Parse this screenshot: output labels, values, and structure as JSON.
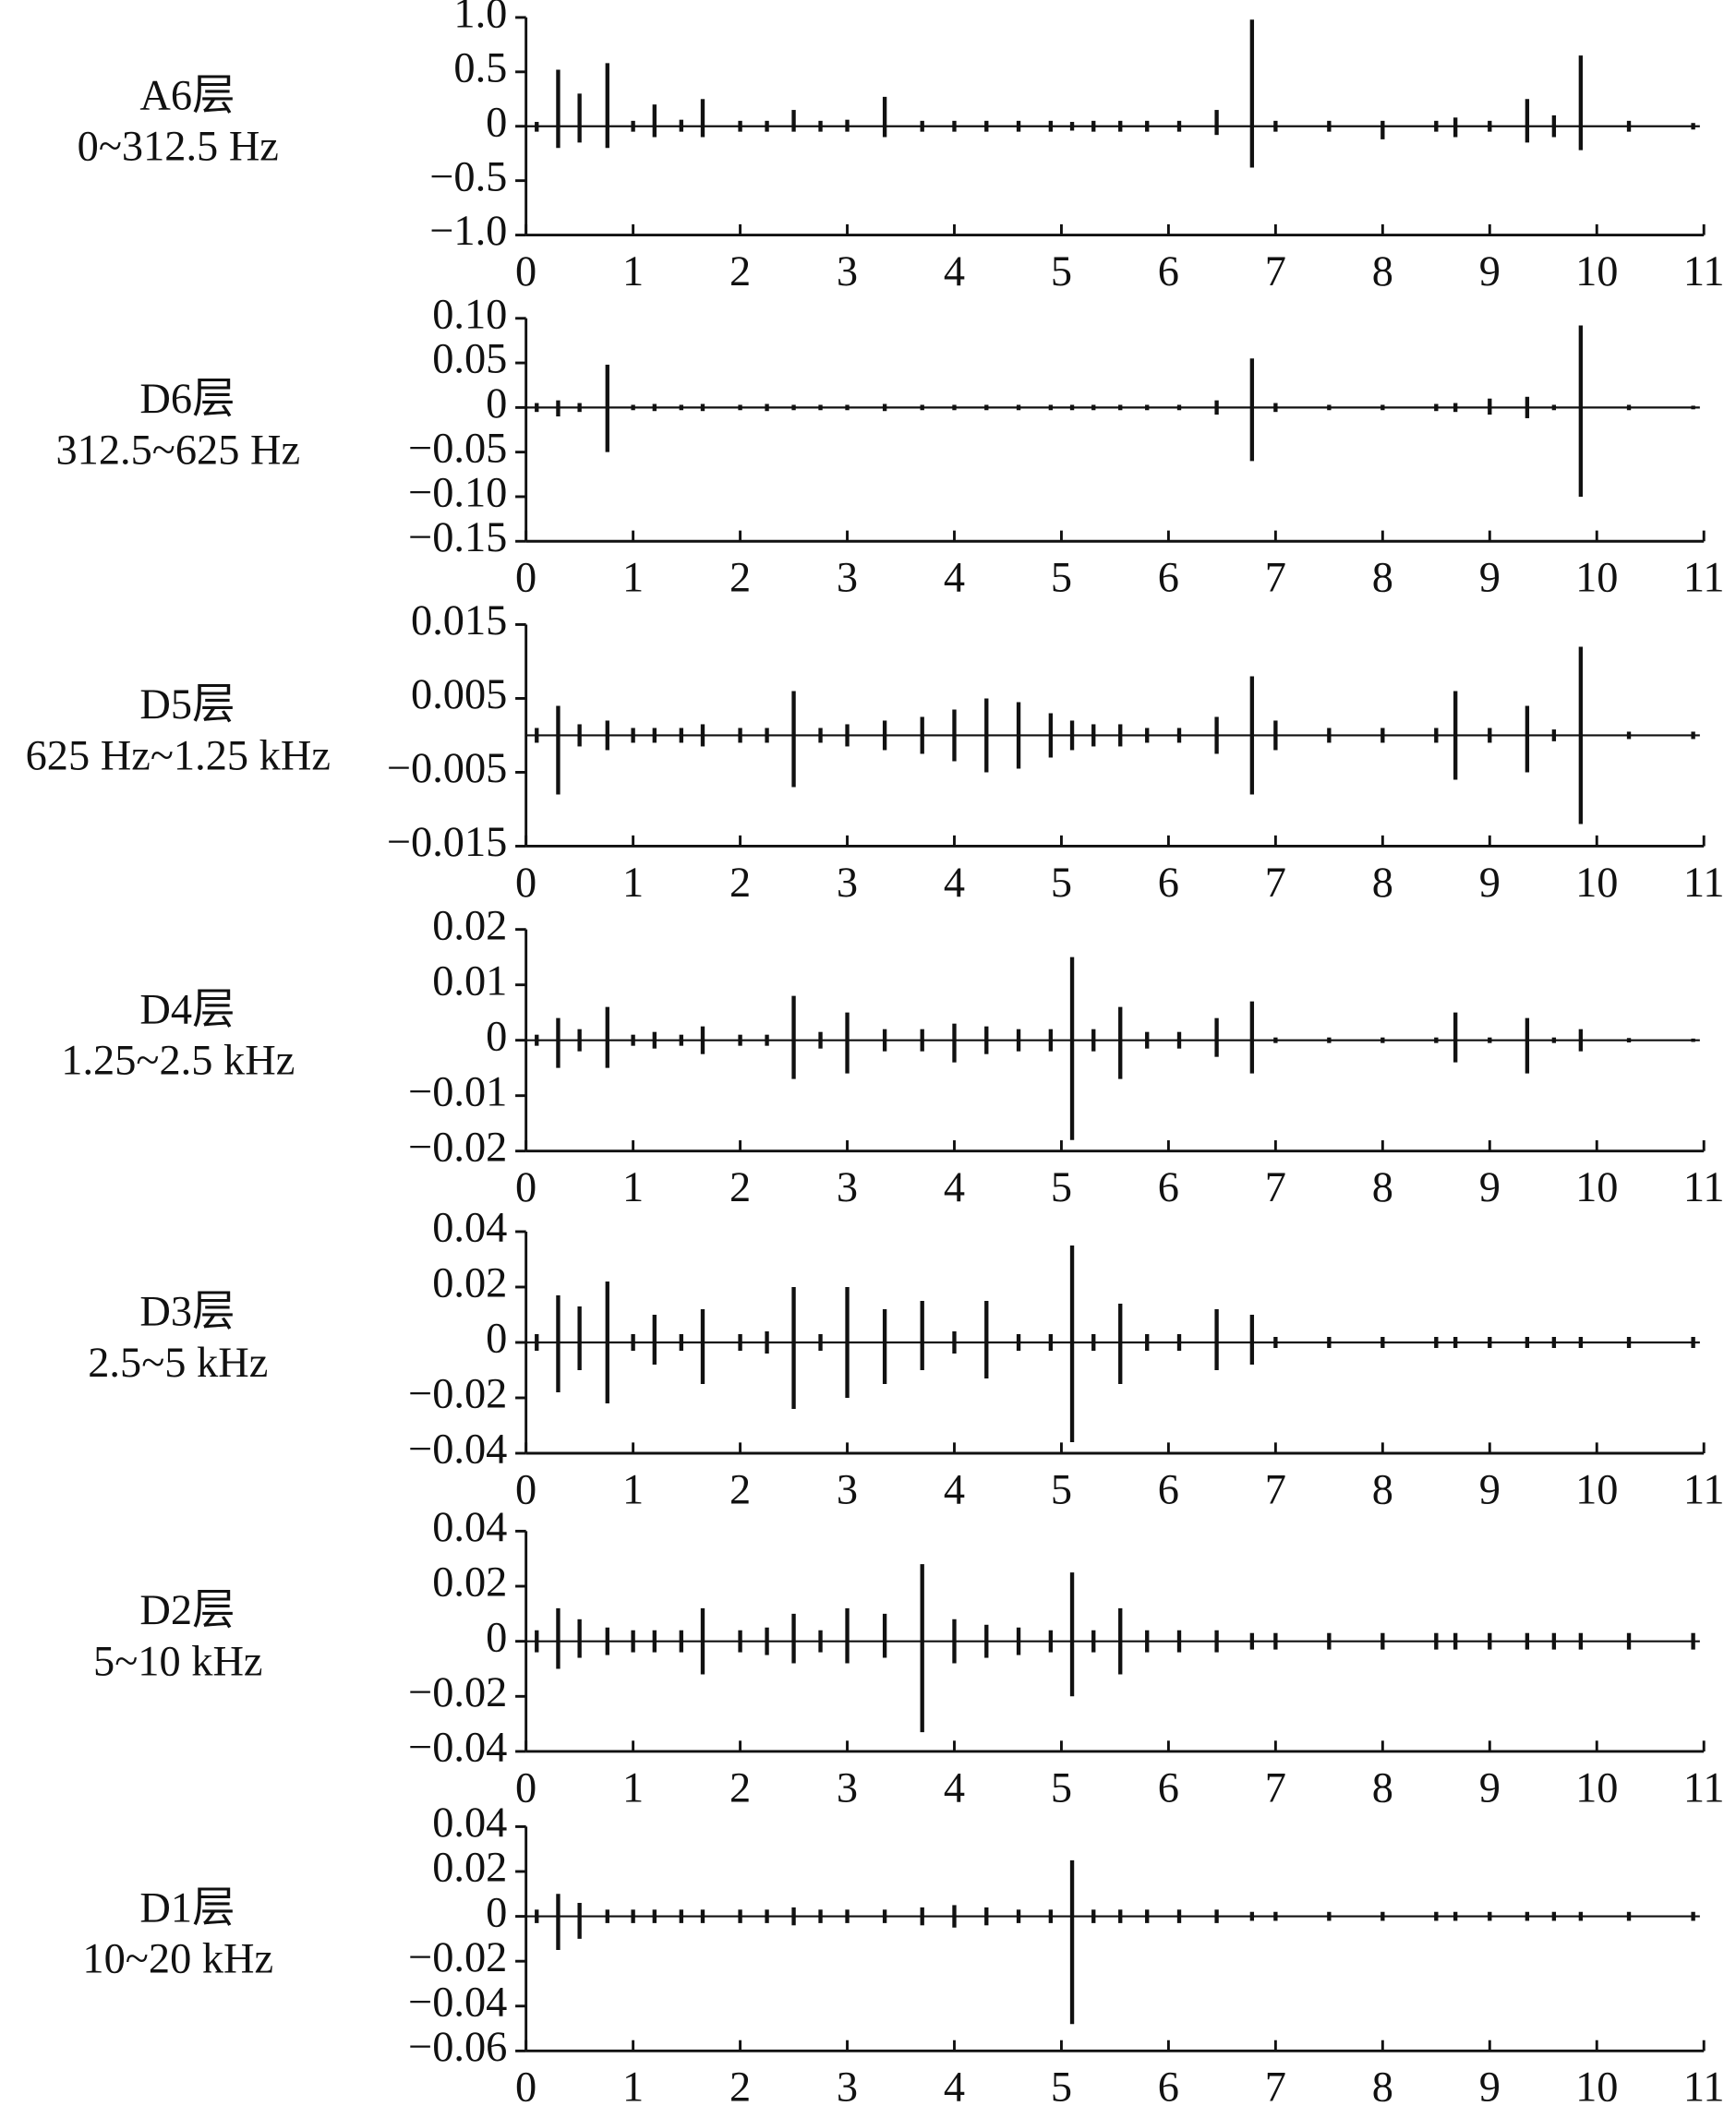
{
  "chart_data": [
    {
      "type": "waveform",
      "label": "A6层",
      "band": "0~312.5 Hz",
      "x": [
        0.1,
        0.3,
        0.5,
        0.76,
        1.0,
        1.2,
        1.45,
        1.65,
        2.0,
        2.25,
        2.5,
        2.75,
        3.0,
        3.35,
        3.7,
        4.0,
        4.3,
        4.6,
        4.9,
        5.1,
        5.3,
        5.55,
        5.8,
        6.1,
        6.45,
        6.78,
        7.0,
        7.5,
        8.0,
        8.5,
        8.68,
        9.0,
        9.35,
        9.6,
        9.85,
        10.3,
        10.9
      ],
      "max": [
        0.04,
        0.52,
        0.3,
        0.58,
        0.05,
        0.2,
        0.06,
        0.25,
        0.05,
        0.05,
        0.15,
        0.05,
        0.06,
        0.27,
        0.05,
        0.05,
        0.05,
        0.05,
        0.05,
        0.04,
        0.05,
        0.05,
        0.05,
        0.05,
        0.15,
        0.98,
        0.05,
        0.05,
        0.05,
        0.05,
        0.08,
        0.05,
        0.25,
        0.1,
        0.65,
        0.05,
        0.03
      ],
      "min": [
        -0.05,
        -0.2,
        -0.15,
        -0.2,
        -0.05,
        -0.1,
        -0.05,
        -0.1,
        -0.05,
        -0.05,
        -0.05,
        -0.05,
        -0.05,
        -0.1,
        -0.05,
        -0.05,
        -0.05,
        -0.05,
        -0.05,
        -0.04,
        -0.05,
        -0.05,
        -0.05,
        -0.05,
        -0.08,
        -0.38,
        -0.05,
        -0.05,
        -0.12,
        -0.05,
        -0.1,
        -0.05,
        -0.15,
        -0.1,
        -0.22,
        -0.05,
        -0.03
      ],
      "xlim": [
        0,
        11
      ],
      "xticks": [
        0,
        1,
        2,
        3,
        4,
        5,
        6,
        7,
        8,
        9,
        10,
        11
      ],
      "ylim": [
        -1,
        1
      ],
      "yticks": [
        {
          "value": 1,
          "label": "1.0"
        },
        0.5,
        0,
        {
          "value": -0.5,
          "label": "−0.5"
        },
        {
          "value": -1,
          "label": "−1.0"
        }
      ]
    },
    {
      "type": "waveform",
      "label": "D6层",
      "band": "312.5~625 Hz",
      "x": [
        0.1,
        0.3,
        0.5,
        0.76,
        1.0,
        1.2,
        1.45,
        1.65,
        2.0,
        2.25,
        2.5,
        2.75,
        3.0,
        3.35,
        3.7,
        4.0,
        4.3,
        4.6,
        4.9,
        5.1,
        5.3,
        5.55,
        5.8,
        6.1,
        6.45,
        6.78,
        7.0,
        7.5,
        8.0,
        8.5,
        8.68,
        9.0,
        9.35,
        9.6,
        9.85,
        10.3,
        10.9
      ],
      "max": [
        0.005,
        0.008,
        0.005,
        0.048,
        0.003,
        0.004,
        0.003,
        0.004,
        0.003,
        0.004,
        0.003,
        0.003,
        0.003,
        0.004,
        0.003,
        0.003,
        0.003,
        0.003,
        0.003,
        0.003,
        0.003,
        0.003,
        0.003,
        0.003,
        0.008,
        0.055,
        0.005,
        0.003,
        0.003,
        0.004,
        0.005,
        0.01,
        0.012,
        0.003,
        0.092,
        0.003,
        0.002
      ],
      "min": [
        -0.005,
        -0.01,
        -0.005,
        -0.05,
        -0.003,
        -0.004,
        -0.003,
        -0.004,
        -0.003,
        -0.004,
        -0.003,
        -0.003,
        -0.003,
        -0.004,
        -0.003,
        -0.003,
        -0.003,
        -0.003,
        -0.003,
        -0.003,
        -0.003,
        -0.003,
        -0.003,
        -0.003,
        -0.008,
        -0.06,
        -0.005,
        -0.003,
        -0.003,
        -0.004,
        -0.005,
        -0.008,
        -0.012,
        -0.003,
        -0.1,
        -0.003,
        -0.002
      ],
      "xlim": [
        0,
        11
      ],
      "xticks": [
        0,
        1,
        2,
        3,
        4,
        5,
        6,
        7,
        8,
        9,
        10,
        11
      ],
      "ylim": [
        -0.15,
        0.1
      ],
      "yticks": [
        {
          "value": 0.1,
          "label": "0.10"
        },
        0.05,
        0,
        {
          "value": -0.05,
          "label": "−0.05"
        },
        {
          "value": -0.1,
          "label": "−0.10"
        },
        {
          "value": -0.15,
          "label": "−0.15"
        }
      ]
    },
    {
      "type": "waveform",
      "label": "D5层",
      "band": "625 Hz~1.25 kHz",
      "x": [
        0.1,
        0.3,
        0.5,
        0.76,
        1.0,
        1.2,
        1.45,
        1.65,
        2.0,
        2.25,
        2.5,
        2.75,
        3.0,
        3.35,
        3.7,
        4.0,
        4.3,
        4.6,
        4.9,
        5.1,
        5.3,
        5.55,
        5.8,
        6.1,
        6.45,
        6.78,
        7.0,
        7.5,
        8.0,
        8.5,
        8.68,
        9.0,
        9.35,
        9.6,
        9.85,
        10.3,
        10.9
      ],
      "max": [
        0.001,
        0.004,
        0.0015,
        0.002,
        0.001,
        0.001,
        0.001,
        0.0015,
        0.001,
        0.001,
        0.006,
        0.001,
        0.0015,
        0.002,
        0.0025,
        0.0035,
        0.005,
        0.0045,
        0.003,
        0.002,
        0.0015,
        0.0015,
        0.001,
        0.001,
        0.0025,
        0.008,
        0.002,
        0.001,
        0.001,
        0.001,
        0.006,
        0.001,
        0.004,
        0.0008,
        0.012,
        0.0005,
        0.0005
      ],
      "min": [
        -0.001,
        -0.008,
        -0.0015,
        -0.002,
        -0.001,
        -0.001,
        -0.001,
        -0.0015,
        -0.001,
        -0.001,
        -0.007,
        -0.001,
        -0.0015,
        -0.002,
        -0.0025,
        -0.0035,
        -0.005,
        -0.0045,
        -0.003,
        -0.002,
        -0.0015,
        -0.0015,
        -0.001,
        -0.001,
        -0.0025,
        -0.008,
        -0.002,
        -0.001,
        -0.001,
        -0.001,
        -0.006,
        -0.001,
        -0.005,
        -0.0008,
        -0.012,
        -0.0005,
        -0.0005
      ],
      "xlim": [
        0,
        11
      ],
      "xticks": [
        0,
        1,
        2,
        3,
        4,
        5,
        6,
        7,
        8,
        9,
        10,
        11
      ],
      "ylim": [
        -0.015,
        0.015
      ],
      "yticks": [
        0.015,
        0.005,
        {
          "value": -0.005,
          "label": "−0.005"
        },
        {
          "value": -0.015,
          "label": "−0.015"
        }
      ]
    },
    {
      "type": "waveform",
      "label": "D4层",
      "band": "1.25~2.5 kHz",
      "x": [
        0.1,
        0.3,
        0.5,
        0.76,
        1.0,
        1.2,
        1.45,
        1.65,
        2.0,
        2.25,
        2.5,
        2.75,
        3.0,
        3.35,
        3.7,
        4.0,
        4.3,
        4.6,
        4.9,
        5.1,
        5.3,
        5.55,
        5.8,
        6.1,
        6.45,
        6.78,
        7.0,
        7.5,
        8.0,
        8.5,
        8.68,
        9.0,
        9.35,
        9.6,
        9.85,
        10.3,
        10.9
      ],
      "max": [
        0.001,
        0.004,
        0.002,
        0.006,
        0.001,
        0.0015,
        0.001,
        0.0025,
        0.001,
        0.001,
        0.008,
        0.0015,
        0.005,
        0.002,
        0.002,
        0.003,
        0.0025,
        0.002,
        0.002,
        0.015,
        0.002,
        0.006,
        0.0015,
        0.0015,
        0.004,
        0.007,
        0.0005,
        0.0005,
        0.0005,
        0.0005,
        0.005,
        0.0005,
        0.004,
        0.0005,
        0.002,
        0.0004,
        0.0003
      ],
      "min": [
        -0.001,
        -0.005,
        -0.002,
        -0.005,
        -0.001,
        -0.0015,
        -0.001,
        -0.0025,
        -0.001,
        -0.001,
        -0.007,
        -0.0015,
        -0.006,
        -0.002,
        -0.002,
        -0.004,
        -0.0025,
        -0.002,
        -0.002,
        -0.018,
        -0.002,
        -0.007,
        -0.0015,
        -0.0015,
        -0.003,
        -0.006,
        -0.0005,
        -0.0005,
        -0.0005,
        -0.0005,
        -0.004,
        -0.0005,
        -0.006,
        -0.0005,
        -0.002,
        -0.0004,
        -0.0003
      ],
      "xlim": [
        0,
        11
      ],
      "xticks": [
        0,
        1,
        2,
        3,
        4,
        5,
        6,
        7,
        8,
        9,
        10,
        11
      ],
      "ylim": [
        -0.02,
        0.02
      ],
      "yticks": [
        0.02,
        0.01,
        0,
        {
          "value": -0.01,
          "label": "−0.01"
        },
        {
          "value": -0.02,
          "label": "−0.02"
        }
      ]
    },
    {
      "type": "waveform",
      "label": "D3层",
      "band": "2.5~5 kHz",
      "x": [
        0.1,
        0.3,
        0.5,
        0.76,
        1.0,
        1.2,
        1.45,
        1.65,
        2.0,
        2.25,
        2.5,
        2.75,
        3.0,
        3.35,
        3.7,
        4.0,
        4.3,
        4.6,
        4.9,
        5.1,
        5.3,
        5.55,
        5.8,
        6.1,
        6.45,
        6.78,
        7.0,
        7.5,
        8.0,
        8.5,
        8.68,
        9.0,
        9.35,
        9.6,
        9.85,
        10.3,
        10.9
      ],
      "max": [
        0.003,
        0.017,
        0.013,
        0.022,
        0.003,
        0.01,
        0.003,
        0.012,
        0.003,
        0.004,
        0.02,
        0.003,
        0.02,
        0.012,
        0.015,
        0.004,
        0.015,
        0.003,
        0.003,
        0.035,
        0.003,
        0.014,
        0.003,
        0.003,
        0.012,
        0.01,
        0.002,
        0.002,
        0.002,
        0.002,
        0.002,
        0.002,
        0.002,
        0.002,
        0.002,
        0.002,
        0.002
      ],
      "min": [
        -0.003,
        -0.018,
        -0.01,
        -0.022,
        -0.003,
        -0.008,
        -0.003,
        -0.015,
        -0.003,
        -0.004,
        -0.024,
        -0.003,
        -0.02,
        -0.015,
        -0.01,
        -0.004,
        -0.013,
        -0.003,
        -0.003,
        -0.036,
        -0.003,
        -0.015,
        -0.003,
        -0.003,
        -0.01,
        -0.008,
        -0.002,
        -0.002,
        -0.002,
        -0.002,
        -0.002,
        -0.002,
        -0.002,
        -0.002,
        -0.002,
        -0.002,
        -0.002
      ],
      "xlim": [
        0,
        11
      ],
      "xticks": [
        0,
        1,
        2,
        3,
        4,
        5,
        6,
        7,
        8,
        9,
        10,
        11
      ],
      "ylim": [
        -0.04,
        0.04
      ],
      "yticks": [
        0.04,
        0.02,
        0,
        {
          "value": -0.02,
          "label": "−0.02"
        },
        {
          "value": -0.04,
          "label": "−0.04"
        }
      ]
    },
    {
      "type": "waveform",
      "label": "D2层",
      "band": "5~10 kHz",
      "x": [
        0.1,
        0.3,
        0.5,
        0.76,
        1.0,
        1.2,
        1.45,
        1.65,
        2.0,
        2.25,
        2.5,
        2.75,
        3.0,
        3.35,
        3.7,
        4.0,
        4.3,
        4.6,
        4.9,
        5.1,
        5.3,
        5.55,
        5.8,
        6.1,
        6.45,
        6.78,
        7.0,
        7.5,
        8.0,
        8.5,
        8.68,
        9.0,
        9.35,
        9.6,
        9.85,
        10.3,
        10.9
      ],
      "max": [
        0.004,
        0.012,
        0.008,
        0.005,
        0.004,
        0.004,
        0.004,
        0.012,
        0.004,
        0.005,
        0.01,
        0.004,
        0.012,
        0.01,
        0.028,
        0.008,
        0.006,
        0.005,
        0.004,
        0.025,
        0.004,
        0.012,
        0.004,
        0.004,
        0.004,
        0.003,
        0.003,
        0.003,
        0.003,
        0.003,
        0.003,
        0.003,
        0.003,
        0.003,
        0.003,
        0.003,
        0.003
      ],
      "min": [
        -0.004,
        -0.01,
        -0.006,
        -0.005,
        -0.004,
        -0.004,
        -0.004,
        -0.012,
        -0.004,
        -0.005,
        -0.008,
        -0.004,
        -0.008,
        -0.006,
        -0.033,
        -0.008,
        -0.006,
        -0.005,
        -0.004,
        -0.02,
        -0.004,
        -0.012,
        -0.004,
        -0.004,
        -0.004,
        -0.003,
        -0.003,
        -0.003,
        -0.003,
        -0.003,
        -0.003,
        -0.003,
        -0.003,
        -0.003,
        -0.003,
        -0.003,
        -0.003
      ],
      "xlim": [
        0,
        11
      ],
      "xticks": [
        0,
        1,
        2,
        3,
        4,
        5,
        6,
        7,
        8,
        9,
        10,
        11
      ],
      "ylim": [
        -0.04,
        0.04
      ],
      "yticks": [
        0.04,
        0.02,
        0,
        {
          "value": -0.02,
          "label": "−0.02"
        },
        {
          "value": -0.04,
          "label": "−0.04"
        }
      ]
    },
    {
      "type": "waveform",
      "label": "D1层",
      "band": "10~20 kHz",
      "x": [
        0.1,
        0.3,
        0.5,
        0.76,
        1.0,
        1.2,
        1.45,
        1.65,
        2.0,
        2.25,
        2.5,
        2.75,
        3.0,
        3.35,
        3.7,
        4.0,
        4.3,
        4.6,
        4.9,
        5.1,
        5.3,
        5.55,
        5.8,
        6.1,
        6.45,
        6.78,
        7.0,
        7.5,
        8.0,
        8.5,
        8.68,
        9.0,
        9.35,
        9.6,
        9.85,
        10.3,
        10.9
      ],
      "max": [
        0.003,
        0.01,
        0.006,
        0.003,
        0.003,
        0.003,
        0.003,
        0.003,
        0.003,
        0.003,
        0.004,
        0.003,
        0.003,
        0.003,
        0.004,
        0.005,
        0.004,
        0.003,
        0.003,
        0.025,
        0.003,
        0.003,
        0.003,
        0.003,
        0.003,
        0.002,
        0.002,
        0.002,
        0.002,
        0.002,
        0.002,
        0.002,
        0.002,
        0.002,
        0.002,
        0.002,
        0.002
      ],
      "min": [
        -0.003,
        -0.015,
        -0.01,
        -0.003,
        -0.003,
        -0.003,
        -0.003,
        -0.003,
        -0.003,
        -0.003,
        -0.004,
        -0.003,
        -0.003,
        -0.003,
        -0.004,
        -0.005,
        -0.004,
        -0.003,
        -0.003,
        -0.048,
        -0.003,
        -0.003,
        -0.003,
        -0.003,
        -0.003,
        -0.002,
        -0.002,
        -0.002,
        -0.002,
        -0.002,
        -0.002,
        -0.002,
        -0.002,
        -0.002,
        -0.002,
        -0.002,
        -0.002
      ],
      "xlim": [
        0,
        11
      ],
      "xticks": [
        0,
        1,
        2,
        3,
        4,
        5,
        6,
        7,
        8,
        9,
        10,
        11
      ],
      "ylim": [
        -0.06,
        0.04
      ],
      "yticks": [
        0.04,
        0.02,
        0,
        {
          "value": -0.02,
          "label": "−0.02"
        },
        {
          "value": -0.04,
          "label": "−0.04"
        },
        {
          "value": -0.06,
          "label": "−0.06"
        }
      ]
    }
  ]
}
